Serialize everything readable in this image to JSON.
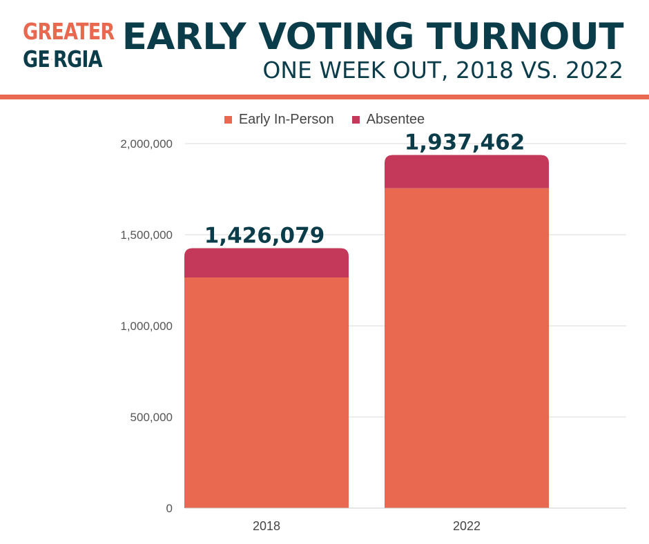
{
  "logo": {
    "line1": "GREATER",
    "line2_left": "GE",
    "line2_right": "RGIA",
    "shield_icon": "peach-shield-check-icon"
  },
  "title": "EARLY VOTING TURNOUT",
  "subtitle": "ONE WEEK OUT, 2018 VS. 2022",
  "colors": {
    "primary": "#e8694f",
    "secondary": "#c4395a",
    "dark": "#0b3c49"
  },
  "chart_data": {
    "type": "bar",
    "stacked": true,
    "categories": [
      "2018",
      "2022"
    ],
    "series": [
      {
        "name": "Early In-Person",
        "color": "#e8694f",
        "values": [
          1265000,
          1755000
        ]
      },
      {
        "name": "Absentee",
        "color": "#c4395a",
        "values": [
          161079,
          182462
        ]
      }
    ],
    "totals": [
      1426079,
      1937462
    ],
    "total_labels": [
      "1,426,079",
      "1,937,462"
    ],
    "ylim": [
      0,
      2000000
    ],
    "yticks": [
      0,
      500000,
      1000000,
      1500000,
      2000000
    ],
    "ytick_labels": [
      "0",
      "500,000",
      "1,000,000",
      "1,500,000",
      "2,000,000"
    ],
    "grid": true,
    "legend_position": "top-center"
  }
}
